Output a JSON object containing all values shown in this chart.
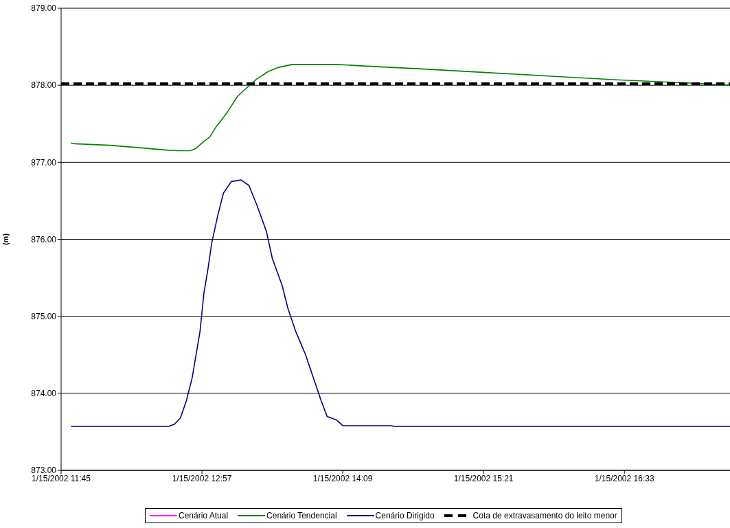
{
  "chart_data": {
    "type": "line",
    "ylabel": "(m)",
    "x": [
      "2002-01-15T11:50",
      "2002-01-15T11:52",
      "2002-01-15T12:10",
      "2002-01-15T12:29",
      "2002-01-15T12:38",
      "2002-01-15T12:44",
      "2002-01-15T12:51",
      "2002-01-15T12:54",
      "2002-01-15T12:57",
      "2002-01-15T13:01",
      "2002-01-15T13:04",
      "2002-01-15T13:10",
      "2002-01-15T13:15",
      "2002-01-15T13:20",
      "2002-01-15T13:25",
      "2002-01-15T13:31",
      "2002-01-15T13:36",
      "2002-01-15T13:43",
      "2002-01-15T14:06",
      "2002-01-15T14:20",
      "2002-01-15T14:51",
      "2002-01-15T15:19",
      "2002-01-15T15:54",
      "2002-01-15T16:29",
      "2002-01-15T17:05",
      "2002-01-15T17:27"
    ],
    "series": [
      {
        "name": "Cenário Atual",
        "color": "#ff00ff",
        "values": [
          null,
          null,
          null,
          null,
          null,
          null,
          null,
          null,
          null,
          null,
          null,
          null,
          null,
          null,
          null,
          null,
          null,
          null,
          null,
          null,
          null,
          null,
          null,
          null,
          null,
          null
        ]
      },
      {
        "name": "Cenário Tendencial",
        "color": "#008000",
        "values": [
          877.25,
          877.24,
          877.22,
          877.18,
          877.16,
          877.15,
          877.15,
          877.18,
          877.25,
          877.33,
          877.45,
          877.65,
          877.85,
          877.97,
          878.08,
          878.18,
          878.23,
          878.27,
          878.27,
          878.25,
          878.21,
          878.17,
          878.12,
          878.07,
          878.03,
          878.0
        ]
      },
      {
        "name": "Cenário Dirigido",
        "color": "#000080",
        "x": [
          "2002-01-15T11:50",
          "2002-01-15T12:40",
          "2002-01-15T12:43",
          "2002-01-15T12:46",
          "2002-01-15T12:49",
          "2002-01-15T12:52",
          "2002-01-15T12:56",
          "2002-01-15T12:58",
          "2002-01-15T13:00",
          "2002-01-15T13:02",
          "2002-01-15T13:05",
          "2002-01-15T13:08",
          "2002-01-15T13:12",
          "2002-01-15T13:17",
          "2002-01-15T13:21",
          "2002-01-15T13:25",
          "2002-01-15T13:30",
          "2002-01-15T13:33",
          "2002-01-15T13:38",
          "2002-01-15T13:41",
          "2002-01-15T13:45",
          "2002-01-15T13:50",
          "2002-01-15T13:54",
          "2002-01-15T13:58",
          "2002-01-15T14:01",
          "2002-01-15T14:06",
          "2002-01-15T14:09",
          "2002-01-15T14:34",
          "2002-01-15T14:35",
          "2002-01-15T17:27"
        ],
        "values": [
          873.57,
          873.57,
          873.6,
          873.68,
          873.9,
          874.2,
          874.8,
          875.3,
          875.6,
          875.95,
          876.3,
          876.6,
          876.75,
          876.77,
          876.7,
          876.45,
          876.1,
          875.75,
          875.4,
          875.1,
          874.8,
          874.5,
          874.2,
          873.9,
          873.7,
          873.65,
          873.58,
          873.58,
          873.57,
          873.57
        ]
      },
      {
        "name": "Cota de extravasamento do leito menor",
        "color": "#000000",
        "line_style": "dashed",
        "x": [
          "2002-01-15T11:45",
          "2002-01-15T17:27"
        ],
        "values": [
          878.02,
          878.02
        ]
      }
    ],
    "xlim": [
      "2002-01-15T11:45",
      "2002-01-15T17:27"
    ],
    "xticks": [
      {
        "value": "2002-01-15T11:45",
        "label": "1/15/2002 11:45"
      },
      {
        "value": "2002-01-15T12:57",
        "label": "1/15/2002 12:57"
      },
      {
        "value": "2002-01-15T14:09",
        "label": "1/15/2002 14:09"
      },
      {
        "value": "2002-01-15T15:21",
        "label": "1/15/2002 15:21"
      },
      {
        "value": "2002-01-15T16:33",
        "label": "1/15/2002 16:33"
      }
    ],
    "ylim": [
      873,
      879
    ],
    "yticks": [
      {
        "value": 873,
        "label": "873.00"
      },
      {
        "value": 874,
        "label": "874.00"
      },
      {
        "value": 875,
        "label": "875.00"
      },
      {
        "value": 876,
        "label": "876.00"
      },
      {
        "value": 877,
        "label": "877.00"
      },
      {
        "value": 878,
        "label": "878.00"
      },
      {
        "value": 879,
        "label": "879.00"
      }
    ],
    "grid": "y",
    "legend": "bottom",
    "marker": "none",
    "line_style": "solid"
  }
}
